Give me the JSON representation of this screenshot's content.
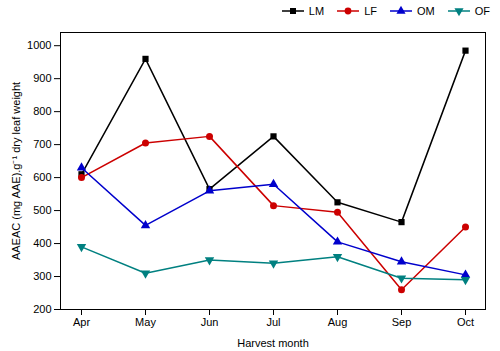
{
  "chart_data": {
    "type": "line",
    "xlabel": "Harvest month",
    "ylabel": "AAEAC (mg AAE).g⁻¹ dry leaf weight",
    "categories": [
      "Apr",
      "May",
      "Jun",
      "Jul",
      "Aug",
      "Sep",
      "Oct"
    ],
    "series": [
      {
        "name": "LM",
        "color": "#000000",
        "marker": "square",
        "values": [
          610,
          960,
          565,
          725,
          525,
          465,
          985
        ]
      },
      {
        "name": "LF",
        "color": "#cc0000",
        "marker": "circle",
        "values": [
          600,
          705,
          725,
          515,
          495,
          260,
          450
        ]
      },
      {
        "name": "OM",
        "color": "#0000cc",
        "marker": "triangle-up",
        "values": [
          630,
          455,
          560,
          580,
          405,
          345,
          305
        ]
      },
      {
        "name": "OF",
        "color": "#008080",
        "marker": "triangle-down",
        "values": [
          390,
          310,
          350,
          340,
          360,
          295,
          290
        ]
      }
    ],
    "ylim": [
      200,
      1040
    ],
    "yticks": [
      200,
      300,
      400,
      500,
      600,
      700,
      800,
      900,
      1000
    ],
    "grid": false,
    "legend": "upper-right"
  }
}
